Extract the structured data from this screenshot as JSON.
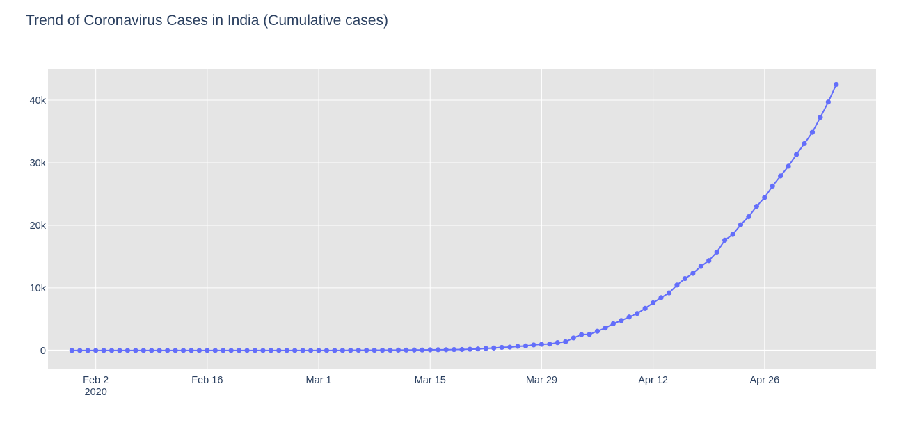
{
  "chart_data": {
    "type": "line",
    "title": "Trend of Coronavirus Cases in India (Cumulative cases)",
    "xlabel": "",
    "ylabel": "",
    "x_start": "2020-01-30",
    "x_end": "2020-05-03",
    "xlim": [
      "2020-01-27",
      "2020-05-10"
    ],
    "ylim": [
      -2900,
      45000
    ],
    "x_ticks": [
      {
        "date": "2020-02-02",
        "label": "Feb 2",
        "sublabel": "2020"
      },
      {
        "date": "2020-02-16",
        "label": "Feb 16",
        "sublabel": ""
      },
      {
        "date": "2020-03-01",
        "label": "Mar 1",
        "sublabel": ""
      },
      {
        "date": "2020-03-15",
        "label": "Mar 15",
        "sublabel": ""
      },
      {
        "date": "2020-03-29",
        "label": "Mar 29",
        "sublabel": ""
      },
      {
        "date": "2020-04-12",
        "label": "Apr 12",
        "sublabel": ""
      },
      {
        "date": "2020-04-26",
        "label": "Apr 26",
        "sublabel": ""
      }
    ],
    "y_ticks": [
      {
        "value": 0,
        "label": "0"
      },
      {
        "value": 10000,
        "label": "10k"
      },
      {
        "value": 20000,
        "label": "20k"
      },
      {
        "value": 30000,
        "label": "30k"
      },
      {
        "value": 40000,
        "label": "40k"
      }
    ],
    "grid": true,
    "legend": "none",
    "series": [
      {
        "values": [
          1,
          1,
          1,
          2,
          3,
          3,
          3,
          3,
          3,
          3,
          3,
          3,
          3,
          3,
          3,
          3,
          3,
          3,
          3,
          3,
          3,
          3,
          3,
          3,
          3,
          3,
          3,
          3,
          3,
          3,
          3,
          3,
          3,
          5,
          6,
          28,
          30,
          31,
          34,
          39,
          43,
          56,
          62,
          73,
          82,
          102,
          113,
          119,
          142,
          156,
          194,
          244,
          330,
          396,
          499,
          536,
          657,
          727,
          887,
          987,
          1024,
          1251,
          1397,
          1998,
          2543,
          2567,
          3082,
          3588,
          4289,
          4778,
          5351,
          5916,
          6729,
          7600,
          8446,
          9205,
          10453,
          11487,
          12322,
          13430,
          14352,
          15722,
          17615,
          18539,
          20080,
          21370,
          23039,
          24447,
          26283,
          27890,
          29451,
          31324,
          33062,
          34863,
          37257,
          39699,
          42505
        ],
        "color": "#636efa"
      }
    ],
    "colors": {
      "plot_bg": "#e5e5e5",
      "grid": "#ffffff",
      "text": "#2a3f5f",
      "line": "#636efa"
    }
  }
}
